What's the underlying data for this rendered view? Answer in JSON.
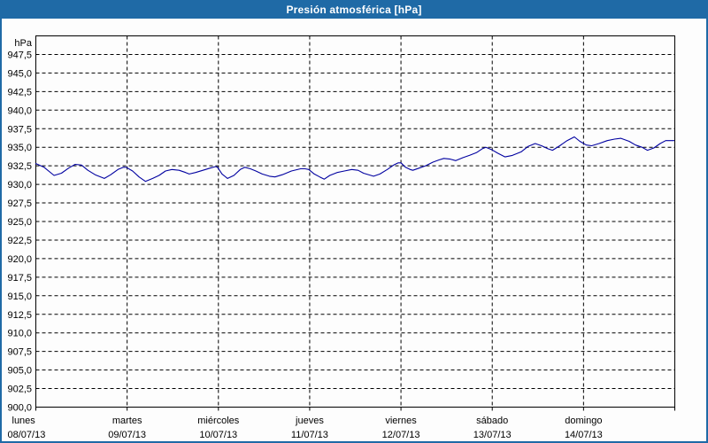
{
  "frame": {
    "title": "Presión atmosférica [hPa]"
  },
  "colors": {
    "titlebar_bg": "#1f6aa6",
    "frame_border": "#1f6aa6",
    "title_text": "#ffffff",
    "plot_border": "#000000",
    "grid": "#000000",
    "line": "#0000a0",
    "background": "#fdfdfd",
    "label_text": "#000000"
  },
  "chart_data": {
    "type": "line",
    "title": "Presión atmosférica [hPa]",
    "unit_label": "hPa",
    "grid": true,
    "legend_position": "none",
    "y_axis": {
      "min": 900.0,
      "max": 950.0,
      "step": 2.5,
      "tick_labels": [
        "947,5",
        "945,0",
        "942,5",
        "940,0",
        "937,5",
        "935,0",
        "932,5",
        "930,0",
        "927,5",
        "925,0",
        "922,5",
        "920,0",
        "917,5",
        "915,0",
        "912,5",
        "910,0",
        "907,5",
        "905,0",
        "902,5",
        "900,0"
      ]
    },
    "x_axis": {
      "range_days": [
        0,
        7
      ],
      "days": [
        {
          "name": "lunes",
          "date": "08/07/13"
        },
        {
          "name": "martes",
          "date": "09/07/13"
        },
        {
          "name": "miércoles",
          "date": "10/07/13"
        },
        {
          "name": "jueves",
          "date": "11/07/13"
        },
        {
          "name": "viernes",
          "date": "12/07/13"
        },
        {
          "name": "sábado",
          "date": "13/07/13"
        },
        {
          "name": "domingo",
          "date": "14/07/13"
        }
      ]
    },
    "series": [
      {
        "name": "Presión atmosférica",
        "color": "#0000a0",
        "points": [
          [
            0.0,
            932.8
          ],
          [
            0.09,
            932.3
          ],
          [
            0.17,
            931.5
          ],
          [
            0.2,
            931.2
          ],
          [
            0.28,
            931.5
          ],
          [
            0.36,
            932.2
          ],
          [
            0.43,
            932.7
          ],
          [
            0.5,
            932.6
          ],
          [
            0.57,
            931.9
          ],
          [
            0.65,
            931.3
          ],
          [
            0.75,
            930.8
          ],
          [
            0.82,
            931.3
          ],
          [
            0.9,
            932.0
          ],
          [
            0.96,
            932.3
          ],
          [
            0.99,
            932.3
          ],
          [
            1.06,
            931.8
          ],
          [
            1.13,
            931.0
          ],
          [
            1.2,
            930.4
          ],
          [
            1.28,
            930.8
          ],
          [
            1.35,
            931.2
          ],
          [
            1.42,
            931.8
          ],
          [
            1.49,
            932.0
          ],
          [
            1.57,
            931.9
          ],
          [
            1.64,
            931.6
          ],
          [
            1.68,
            931.4
          ],
          [
            1.75,
            931.6
          ],
          [
            1.83,
            931.9
          ],
          [
            1.91,
            932.2
          ],
          [
            1.97,
            932.4
          ],
          [
            1.99,
            932.3
          ],
          [
            2.04,
            931.4
          ],
          [
            2.1,
            930.8
          ],
          [
            2.17,
            931.2
          ],
          [
            2.24,
            932.0
          ],
          [
            2.29,
            932.3
          ],
          [
            2.35,
            932.1
          ],
          [
            2.41,
            931.8
          ],
          [
            2.48,
            931.4
          ],
          [
            2.56,
            931.1
          ],
          [
            2.62,
            931.0
          ],
          [
            2.7,
            931.3
          ],
          [
            2.8,
            931.8
          ],
          [
            2.9,
            932.1
          ],
          [
            2.95,
            932.1
          ],
          [
            2.99,
            932.0
          ],
          [
            3.05,
            931.4
          ],
          [
            3.11,
            931.0
          ],
          [
            3.16,
            930.7
          ],
          [
            3.22,
            931.2
          ],
          [
            3.3,
            931.6
          ],
          [
            3.38,
            931.8
          ],
          [
            3.46,
            932.0
          ],
          [
            3.53,
            931.9
          ],
          [
            3.59,
            931.5
          ],
          [
            3.7,
            931.1
          ],
          [
            3.77,
            931.4
          ],
          [
            3.85,
            932.0
          ],
          [
            3.92,
            932.6
          ],
          [
            3.97,
            932.9
          ],
          [
            4.0,
            932.9
          ],
          [
            4.05,
            932.3
          ],
          [
            4.1,
            932.0
          ],
          [
            4.13,
            931.9
          ],
          [
            4.2,
            932.2
          ],
          [
            4.27,
            932.5
          ],
          [
            4.35,
            933.0
          ],
          [
            4.42,
            933.3
          ],
          [
            4.47,
            933.5
          ],
          [
            4.54,
            933.4
          ],
          [
            4.6,
            933.2
          ],
          [
            4.68,
            933.6
          ],
          [
            4.75,
            933.9
          ],
          [
            4.83,
            934.3
          ],
          [
            4.89,
            934.8
          ],
          [
            4.93,
            935.0
          ],
          [
            4.99,
            934.7
          ],
          [
            5.06,
            934.2
          ],
          [
            5.14,
            933.7
          ],
          [
            5.22,
            933.9
          ],
          [
            5.32,
            934.4
          ],
          [
            5.39,
            935.1
          ],
          [
            5.47,
            935.5
          ],
          [
            5.54,
            935.2
          ],
          [
            5.61,
            934.8
          ],
          [
            5.66,
            934.6
          ],
          [
            5.74,
            935.2
          ],
          [
            5.82,
            935.9
          ],
          [
            5.9,
            936.4
          ],
          [
            5.96,
            935.8
          ],
          [
            6.03,
            935.3
          ],
          [
            6.09,
            935.2
          ],
          [
            6.17,
            935.5
          ],
          [
            6.26,
            935.9
          ],
          [
            6.34,
            936.1
          ],
          [
            6.41,
            936.2
          ],
          [
            6.5,
            935.8
          ],
          [
            6.57,
            935.3
          ],
          [
            6.64,
            935.0
          ],
          [
            6.7,
            934.6
          ],
          [
            6.77,
            934.9
          ],
          [
            6.84,
            935.5
          ],
          [
            6.9,
            935.9
          ],
          [
            6.99,
            935.9
          ]
        ]
      }
    ]
  }
}
